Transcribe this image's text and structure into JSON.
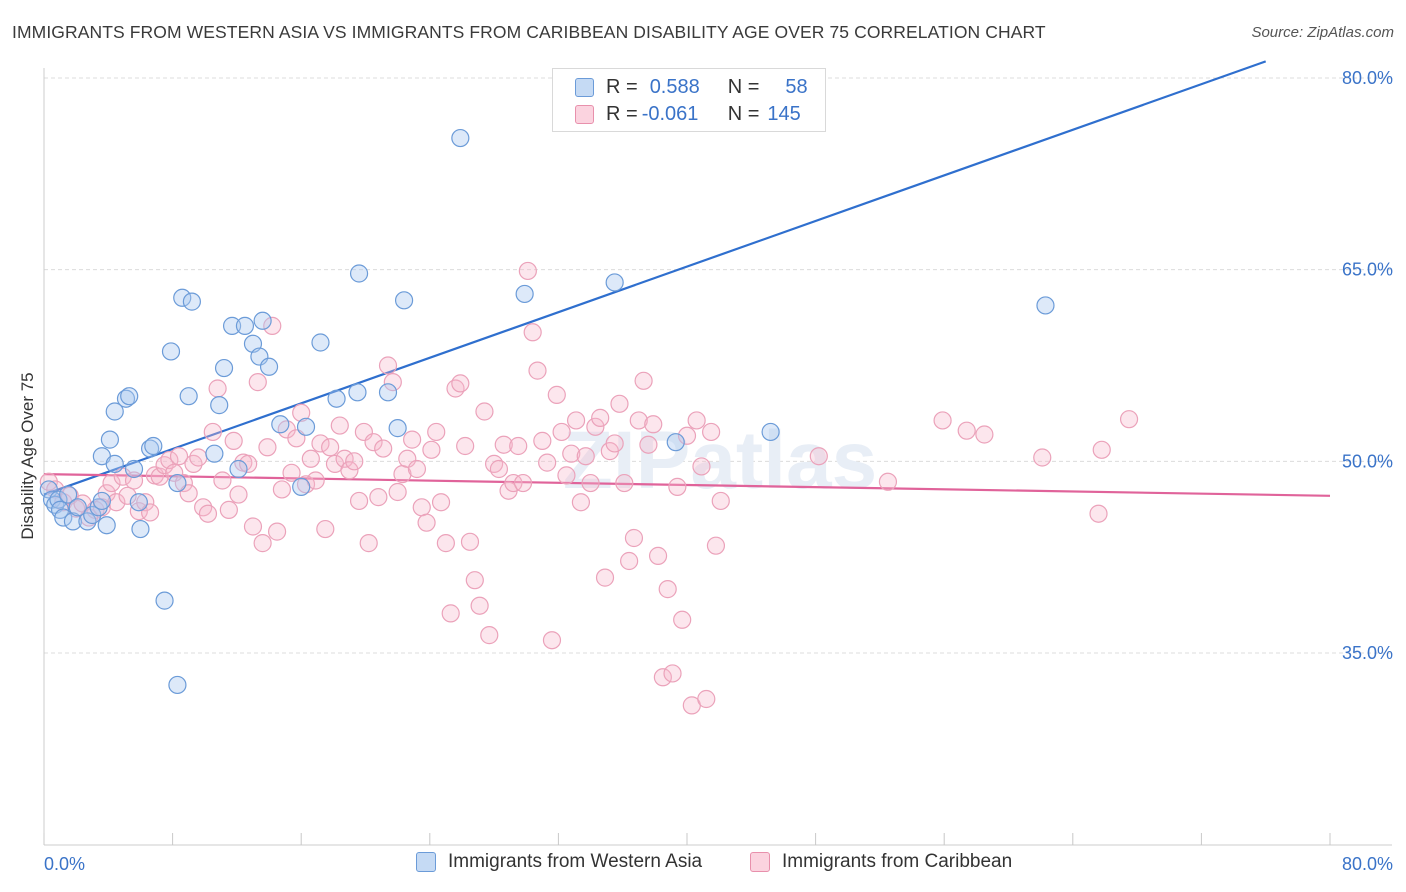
{
  "title": "IMMIGRANTS FROM WESTERN ASIA VS IMMIGRANTS FROM CARIBBEAN DISABILITY AGE OVER 75 CORRELATION CHART",
  "source": "Source: ZipAtlas.com",
  "watermark": "ZIPatlas",
  "legend": {
    "rows": [
      {
        "r_label": "R =",
        "r_value": "0.588",
        "n_label": "N =",
        "n_value": "58",
        "color": "#a9c8ef",
        "stroke": "#6b9bd8"
      },
      {
        "r_label": "R =",
        "r_value": "-0.061",
        "n_label": "N =",
        "n_value": "145",
        "color": "#f6b8cc",
        "stroke": "#e890ac"
      }
    ]
  },
  "bottom_legend": [
    {
      "label": "Immigrants from Western Asia",
      "color": "#c5daf4",
      "stroke": "#6b9bd8"
    },
    {
      "label": "Immigrants from Caribbean",
      "color": "#fbd3df",
      "stroke": "#e890ac"
    }
  ],
  "chart_data": {
    "type": "scatter",
    "title": "IMMIGRANTS FROM WESTERN ASIA VS IMMIGRANTS FROM CARIBBEAN DISABILITY AGE OVER 75 CORRELATION CHART",
    "xlabel": "",
    "ylabel": "Disability Age Over 75",
    "xlim": [
      0,
      80
    ],
    "ylim": [
      20,
      80
    ],
    "x_tick_labels": [
      "0.0%",
      "80.0%"
    ],
    "y_tick_labels": [
      "80.0%",
      "65.0%",
      "50.0%",
      "35.0%"
    ],
    "y_ticks": [
      80,
      65,
      50,
      35
    ],
    "grid": true,
    "legend_position": "top-center",
    "colors": {
      "blue": "#3a73c8",
      "pink": "#e06090",
      "blue_text": "#3a73c8"
    },
    "series": [
      {
        "name": "Immigrants from Western Asia",
        "color": "#3a73c8",
        "trend": {
          "x": [
            0.0,
            76.0
          ],
          "y": [
            47.4,
            81.3
          ]
        },
        "points": [
          [
            0.3,
            47.8
          ],
          [
            0.5,
            47.0
          ],
          [
            0.7,
            46.6
          ],
          [
            0.9,
            47.0
          ],
          [
            1.0,
            46.2
          ],
          [
            1.2,
            45.6
          ],
          [
            1.5,
            47.4
          ],
          [
            1.8,
            45.3
          ],
          [
            2.1,
            46.4
          ],
          [
            2.7,
            45.3
          ],
          [
            3.0,
            45.8
          ],
          [
            3.4,
            46.4
          ],
          [
            3.6,
            46.9
          ],
          [
            3.9,
            45.0
          ],
          [
            3.6,
            50.4
          ],
          [
            4.1,
            51.7
          ],
          [
            4.4,
            49.8
          ],
          [
            4.4,
            53.9
          ],
          [
            5.1,
            54.9
          ],
          [
            5.3,
            55.1
          ],
          [
            5.6,
            49.4
          ],
          [
            5.9,
            46.8
          ],
          [
            6.0,
            44.7
          ],
          [
            6.6,
            51.0
          ],
          [
            6.8,
            51.2
          ],
          [
            7.5,
            39.1
          ],
          [
            7.9,
            58.6
          ],
          [
            8.3,
            48.3
          ],
          [
            8.6,
            62.8
          ],
          [
            9.0,
            55.1
          ],
          [
            9.2,
            62.5
          ],
          [
            10.6,
            50.6
          ],
          [
            10.9,
            54.4
          ],
          [
            11.2,
            57.3
          ],
          [
            11.7,
            60.6
          ],
          [
            12.1,
            49.4
          ],
          [
            12.5,
            60.6
          ],
          [
            13.0,
            59.2
          ],
          [
            13.4,
            58.2
          ],
          [
            13.6,
            61.0
          ],
          [
            14.0,
            57.4
          ],
          [
            14.7,
            52.9
          ],
          [
            16.0,
            48.0
          ],
          [
            16.3,
            52.7
          ],
          [
            17.2,
            59.3
          ],
          [
            18.2,
            54.9
          ],
          [
            19.5,
            55.4
          ],
          [
            19.6,
            64.7
          ],
          [
            21.4,
            55.4
          ],
          [
            22.0,
            52.6
          ],
          [
            22.4,
            62.6
          ],
          [
            25.9,
            75.3
          ],
          [
            29.9,
            63.1
          ],
          [
            35.5,
            64.0
          ],
          [
            39.3,
            51.5
          ],
          [
            45.2,
            52.3
          ],
          [
            62.3,
            62.2
          ],
          [
            8.3,
            32.5
          ]
        ]
      },
      {
        "name": "Immigrants from Caribbean",
        "color": "#e06090",
        "trend": {
          "x": [
            0.0,
            80.0
          ],
          "y": [
            49.0,
            47.3
          ]
        },
        "points": [
          [
            0.3,
            48.4
          ],
          [
            0.7,
            47.8
          ],
          [
            1.2,
            46.8
          ],
          [
            1.6,
            47.3
          ],
          [
            2.0,
            46.3
          ],
          [
            2.4,
            46.7
          ],
          [
            2.8,
            45.6
          ],
          [
            3.2,
            46.2
          ],
          [
            3.6,
            46.4
          ],
          [
            3.9,
            47.5
          ],
          [
            4.2,
            48.3
          ],
          [
            4.5,
            46.8
          ],
          [
            4.9,
            48.8
          ],
          [
            5.2,
            47.3
          ],
          [
            5.6,
            48.5
          ],
          [
            5.9,
            46.1
          ],
          [
            6.3,
            46.8
          ],
          [
            6.6,
            46.0
          ],
          [
            6.9,
            48.9
          ],
          [
            7.2,
            48.8
          ],
          [
            7.5,
            49.7
          ],
          [
            7.8,
            50.1
          ],
          [
            8.1,
            49.1
          ],
          [
            8.4,
            50.4
          ],
          [
            8.7,
            48.3
          ],
          [
            9.0,
            47.5
          ],
          [
            9.3,
            49.8
          ],
          [
            9.6,
            50.3
          ],
          [
            9.9,
            46.4
          ],
          [
            10.2,
            45.9
          ],
          [
            10.5,
            52.3
          ],
          [
            10.8,
            55.7
          ],
          [
            11.1,
            48.5
          ],
          [
            11.5,
            46.2
          ],
          [
            11.8,
            51.6
          ],
          [
            12.1,
            47.4
          ],
          [
            12.4,
            49.9
          ],
          [
            12.7,
            49.8
          ],
          [
            13.0,
            44.9
          ],
          [
            13.3,
            56.2
          ],
          [
            13.6,
            43.6
          ],
          [
            13.9,
            51.1
          ],
          [
            14.2,
            60.6
          ],
          [
            14.5,
            44.5
          ],
          [
            14.8,
            47.8
          ],
          [
            15.1,
            52.5
          ],
          [
            15.4,
            49.1
          ],
          [
            15.7,
            51.8
          ],
          [
            16.0,
            53.8
          ],
          [
            16.3,
            48.2
          ],
          [
            16.6,
            50.2
          ],
          [
            16.9,
            48.5
          ],
          [
            17.2,
            51.4
          ],
          [
            17.5,
            44.7
          ],
          [
            17.8,
            51.1
          ],
          [
            18.1,
            49.8
          ],
          [
            18.4,
            52.8
          ],
          [
            18.7,
            50.2
          ],
          [
            19.0,
            49.3
          ],
          [
            19.3,
            50.0
          ],
          [
            19.6,
            46.9
          ],
          [
            19.9,
            52.3
          ],
          [
            20.2,
            43.6
          ],
          [
            20.5,
            51.5
          ],
          [
            20.8,
            47.2
          ],
          [
            21.1,
            51.0
          ],
          [
            21.4,
            57.5
          ],
          [
            21.7,
            56.2
          ],
          [
            22.0,
            47.6
          ],
          [
            22.3,
            49.0
          ],
          [
            22.6,
            50.2
          ],
          [
            22.9,
            51.7
          ],
          [
            23.2,
            49.4
          ],
          [
            23.5,
            46.4
          ],
          [
            23.8,
            45.2
          ],
          [
            24.1,
            50.9
          ],
          [
            24.4,
            52.3
          ],
          [
            24.7,
            46.8
          ],
          [
            25.0,
            43.6
          ],
          [
            25.3,
            38.1
          ],
          [
            25.6,
            55.7
          ],
          [
            25.9,
            56.1
          ],
          [
            26.2,
            51.2
          ],
          [
            26.5,
            43.7
          ],
          [
            26.8,
            40.7
          ],
          [
            27.1,
            38.7
          ],
          [
            27.4,
            53.9
          ],
          [
            27.7,
            36.4
          ],
          [
            28.0,
            49.8
          ],
          [
            28.3,
            49.4
          ],
          [
            28.6,
            51.3
          ],
          [
            28.9,
            47.7
          ],
          [
            29.2,
            48.3
          ],
          [
            29.5,
            51.2
          ],
          [
            29.8,
            48.3
          ],
          [
            30.1,
            64.9
          ],
          [
            30.4,
            60.1
          ],
          [
            30.7,
            57.1
          ],
          [
            31.0,
            51.6
          ],
          [
            31.3,
            49.9
          ],
          [
            31.6,
            36.0
          ],
          [
            31.9,
            55.2
          ],
          [
            32.2,
            52.3
          ],
          [
            32.5,
            48.9
          ],
          [
            32.8,
            50.6
          ],
          [
            33.1,
            53.2
          ],
          [
            33.4,
            46.8
          ],
          [
            33.7,
            50.4
          ],
          [
            34.0,
            48.3
          ],
          [
            34.3,
            52.7
          ],
          [
            34.6,
            53.4
          ],
          [
            34.9,
            40.9
          ],
          [
            35.2,
            50.8
          ],
          [
            35.5,
            51.4
          ],
          [
            35.8,
            54.5
          ],
          [
            36.1,
            48.3
          ],
          [
            36.4,
            42.2
          ],
          [
            36.7,
            44.0
          ],
          [
            37.0,
            53.2
          ],
          [
            37.3,
            56.3
          ],
          [
            37.6,
            51.3
          ],
          [
            37.9,
            52.9
          ],
          [
            38.2,
            42.6
          ],
          [
            38.5,
            33.1
          ],
          [
            38.8,
            40.0
          ],
          [
            39.1,
            33.4
          ],
          [
            39.4,
            48.0
          ],
          [
            39.7,
            37.6
          ],
          [
            40.0,
            52.0
          ],
          [
            40.3,
            30.9
          ],
          [
            40.6,
            53.2
          ],
          [
            40.9,
            49.6
          ],
          [
            41.2,
            31.4
          ],
          [
            41.5,
            52.3
          ],
          [
            41.8,
            43.4
          ],
          [
            42.1,
            46.9
          ],
          [
            48.2,
            50.4
          ],
          [
            52.5,
            48.4
          ],
          [
            55.9,
            53.2
          ],
          [
            57.4,
            52.4
          ],
          [
            58.5,
            52.1
          ],
          [
            62.1,
            50.3
          ],
          [
            65.6,
            45.9
          ],
          [
            65.8,
            50.9
          ],
          [
            67.5,
            53.3
          ]
        ]
      }
    ]
  }
}
